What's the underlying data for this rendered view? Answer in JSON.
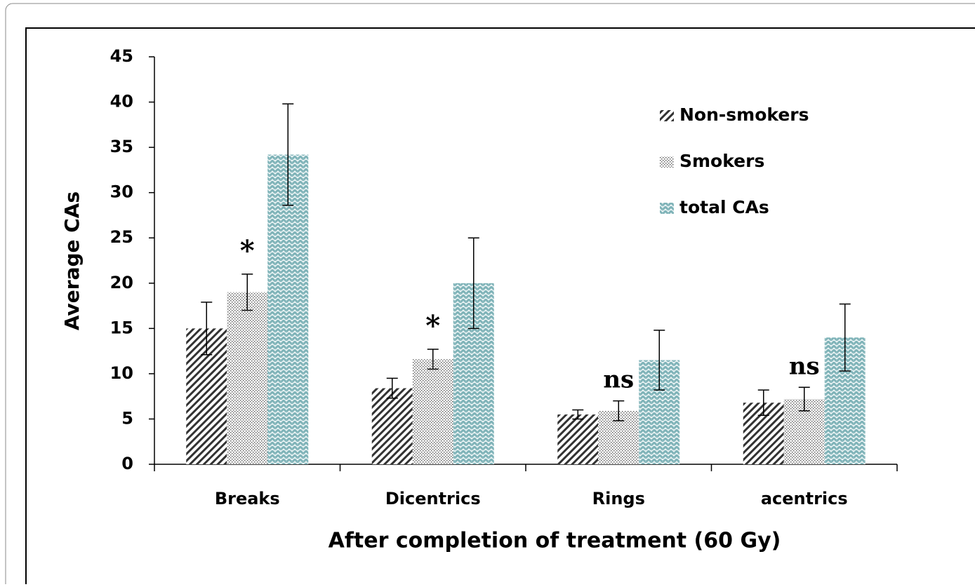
{
  "chart_data": {
    "type": "bar",
    "xlabel": "After completion of  treatment (60 Gy)",
    "ylabel": "Average CAs",
    "categories": [
      "Breaks",
      "Dicentrics",
      "Rings",
      "acentrics"
    ],
    "annotations": [
      "*",
      "*",
      "ns",
      "ns"
    ],
    "series": [
      {
        "name": "Non-smokers",
        "color": "#333333",
        "values": [
          15,
          8.4,
          5.5,
          6.8
        ],
        "errors": [
          2.9,
          1.1,
          0.5,
          1.4
        ]
      },
      {
        "name": "Smokers",
        "color": "#555555",
        "values": [
          19,
          11.6,
          5.9,
          7.2
        ],
        "errors": [
          2,
          1.1,
          1.1,
          1.3
        ]
      },
      {
        "name": "total CAs",
        "color": "#7fb3b8",
        "values": [
          34.2,
          20,
          11.5,
          14
        ],
        "errors": [
          5.6,
          5,
          3.3,
          3.7
        ]
      }
    ],
    "ylim": [
      0,
      45
    ],
    "yticks": [
      0,
      5,
      10,
      15,
      20,
      25,
      30,
      35,
      40,
      45
    ],
    "legend": "upper right"
  }
}
